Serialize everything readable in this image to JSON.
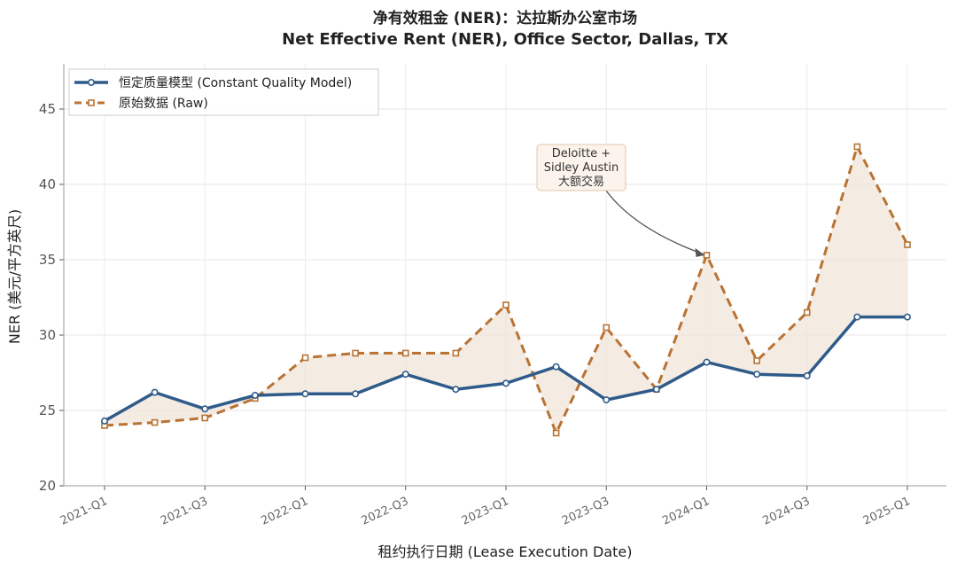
{
  "chart_data": {
    "type": "line",
    "title": "净有效租金 (NER)：达拉斯办公室市场",
    "subtitle": "Net Effective Rent (NER), Office Sector, Dallas, TX",
    "xlabel": "租约执行日期 (Lease Execution Date)",
    "ylabel": "NER (美元/平方英尺)",
    "ylim": [
      20,
      48
    ],
    "yticks": [
      20,
      25,
      30,
      35,
      40,
      45
    ],
    "categories": [
      "2021-Q1",
      "2021-Q2",
      "2021-Q3",
      "2021-Q4",
      "2022-Q1",
      "2022-Q2",
      "2022-Q3",
      "2022-Q4",
      "2023-Q1",
      "2023-Q2",
      "2023-Q3",
      "2023-Q4",
      "2024-Q1",
      "2024-Q2",
      "2024-Q3",
      "2024-Q4",
      "2025-Q1"
    ],
    "xtick_labels": [
      "2021-Q1",
      "2021-Q3",
      "2022-Q1",
      "2022-Q3",
      "2023-Q1",
      "2023-Q3",
      "2024-Q1",
      "2024-Q3",
      "2025-Q1"
    ],
    "grid": true,
    "legend_position": "top-left",
    "series": [
      {
        "name": "恒定质量模型 (Constant Quality Model)",
        "color": "#2f5b8a",
        "style": "solid",
        "marker": "circle",
        "values": [
          24.3,
          26.2,
          25.1,
          26.0,
          26.1,
          26.1,
          27.4,
          26.4,
          26.8,
          27.9,
          25.7,
          26.4,
          28.2,
          27.4,
          27.3,
          31.2,
          31.2
        ]
      },
      {
        "name": "原始数据 (Raw)",
        "color": "#b87333",
        "style": "dashed",
        "marker": "square",
        "values": [
          24.0,
          24.2,
          24.5,
          25.8,
          28.5,
          28.8,
          28.8,
          28.8,
          32.0,
          23.5,
          30.5,
          26.4,
          35.3,
          28.3,
          31.5,
          42.5,
          36.0
        ]
      }
    ],
    "fill_color": "#f0e4da",
    "annotation": {
      "lines": [
        "Deloitte +",
        "Sidley Austin",
        "大额交易"
      ],
      "target_category": "2024-Q1",
      "target_value": 35.3
    }
  }
}
